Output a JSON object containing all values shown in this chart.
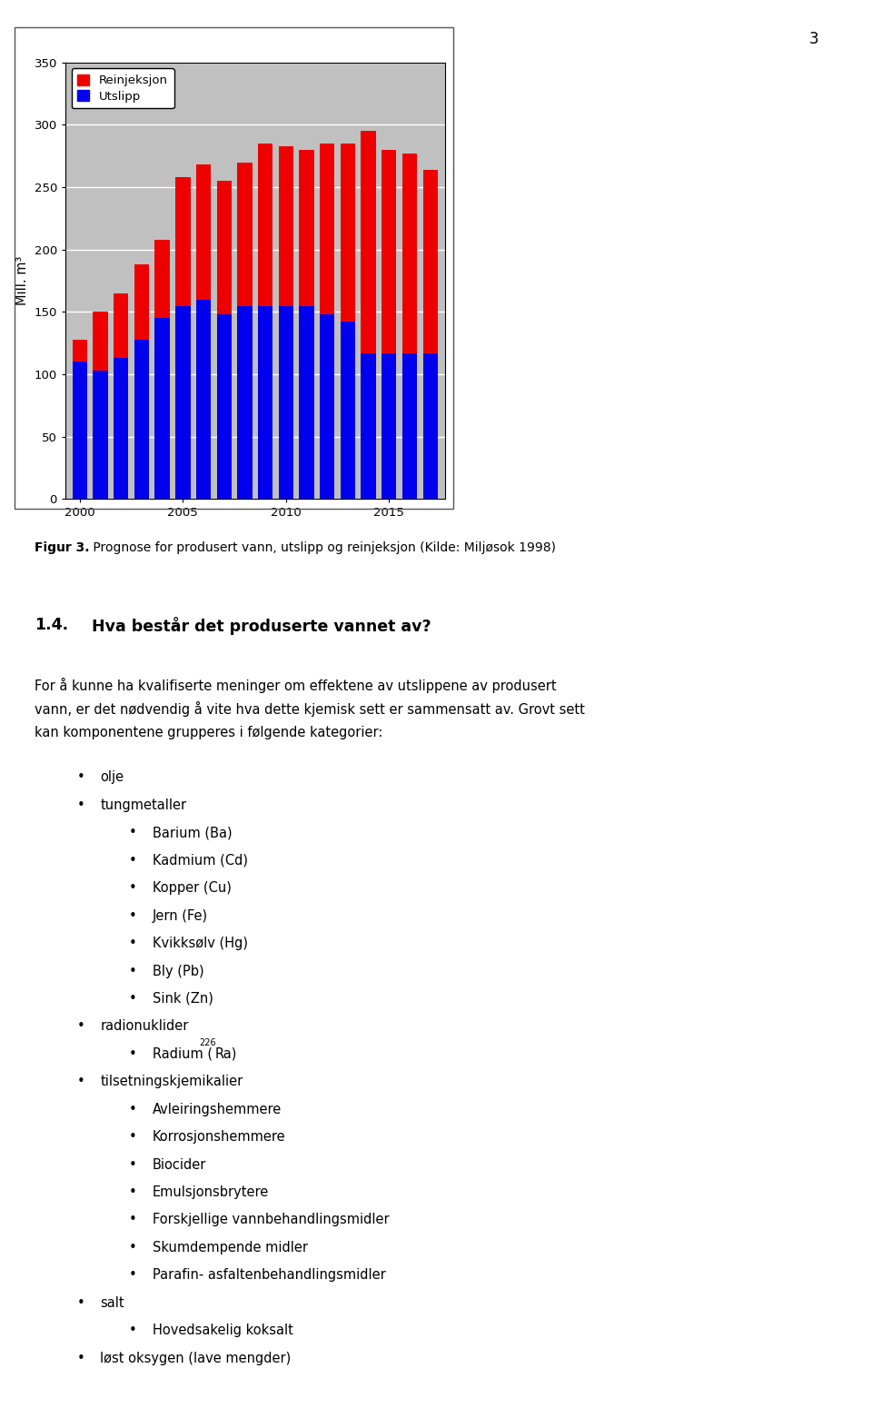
{
  "years": [
    2000,
    2001,
    2002,
    2003,
    2004,
    2005,
    2006,
    2007,
    2008,
    2009,
    2010,
    2011,
    2012,
    2013,
    2014,
    2015,
    2016,
    2017
  ],
  "utslipp": [
    110,
    103,
    113,
    128,
    145,
    155,
    160,
    148,
    155,
    155,
    155,
    155,
    148,
    142,
    117,
    117,
    117,
    117
  ],
  "reinjeksjon": [
    18,
    47,
    52,
    60,
    63,
    103,
    108,
    107,
    115,
    130,
    128,
    125,
    137,
    143,
    178,
    163,
    160,
    147
  ],
  "ylabel": "Mill. m³",
  "ylim": [
    0,
    350
  ],
  "yticks": [
    0,
    50,
    100,
    150,
    200,
    250,
    300,
    350
  ],
  "xticks": [
    2000,
    2005,
    2010,
    2015
  ],
  "legend_reinjeksjon": "Reinjeksjon",
  "legend_utslipp": "Utslipp",
  "bar_color_utslipp": "#0000EE",
  "bar_color_reinjeksjon": "#EE0000",
  "chart_bg": "#C0C0C0",
  "fig_bg": "#FFFFFF",
  "page_number": "3",
  "fig_caption_bold": "Figur 3.",
  "fig_caption_normal": " Prognose for produsert vann, utslipp og reinjeksjon (Kilde: Miljøsok 1998)",
  "section_num": "1.4.",
  "section_title": "Hva består det produserte vannet av?",
  "para_lines": [
    "For å kunne ha kvalifiserte meninger om effektene av utslippene av produsert",
    "vann, er det nødvendig å vite hva dette kjemisk sett er sammensatt av. Grovt sett",
    "kan komponentene grupperes i følgende kategorier:"
  ],
  "bullets": [
    {
      "level": 1,
      "text": "olje"
    },
    {
      "level": 1,
      "text": "tungmetaller"
    },
    {
      "level": 2,
      "text": "Barium (Ba)"
    },
    {
      "level": 2,
      "text": "Kadmium (Cd)"
    },
    {
      "level": 2,
      "text": "Kopper (Cu)"
    },
    {
      "level": 2,
      "text": "Jern (Fe)"
    },
    {
      "level": 2,
      "text": "Kvikksølv (Hg)"
    },
    {
      "level": 2,
      "text": "Bly (Pb)"
    },
    {
      "level": 2,
      "text": "Sink (Zn)"
    },
    {
      "level": 1,
      "text": "radionuklider"
    },
    {
      "level": 2,
      "text": "RADIUM_SPECIAL"
    },
    {
      "level": 1,
      "text": "tilsetningskjemikalier"
    },
    {
      "level": 2,
      "text": "Avleiringshemmere"
    },
    {
      "level": 2,
      "text": "Korrosjonshemmere"
    },
    {
      "level": 2,
      "text": "Biocider"
    },
    {
      "level": 2,
      "text": "Emulsjonsbrytere"
    },
    {
      "level": 2,
      "text": "Forskjellige vannbehandlingsmidler"
    },
    {
      "level": 2,
      "text": "Skumdempende midler"
    },
    {
      "level": 2,
      "text": "Parafin- asfaltenbehandlingsmidler"
    },
    {
      "level": 1,
      "text": "salt"
    },
    {
      "level": 2,
      "text": "Hovedsakelig koksalt"
    },
    {
      "level": 1,
      "text": "løst oksygen (lave mengder)"
    }
  ]
}
